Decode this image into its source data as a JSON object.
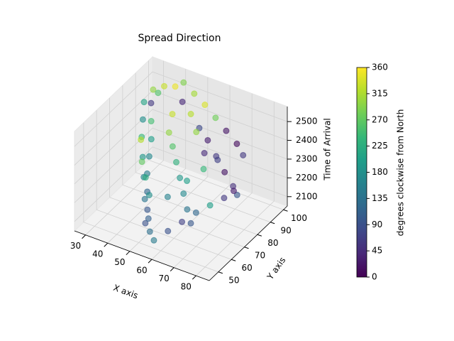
{
  "chart_data": {
    "type": "scatter3d",
    "title": "Spread Direction",
    "xlabel": "X axis",
    "ylabel": "Y axis",
    "zlabel": "Time of Arrival",
    "colorbar_label": "degrees clockwise from North",
    "xlim": [
      25,
      86
    ],
    "xticks": [
      30,
      40,
      50,
      60,
      70,
      80
    ],
    "ylim": [
      43,
      103
    ],
    "yticks": [
      50,
      60,
      70,
      80,
      90,
      100
    ],
    "zlim": [
      2050,
      2580
    ],
    "zticks": [
      2100,
      2200,
      2300,
      2400,
      2500
    ],
    "clim": [
      0,
      360
    ],
    "cticks": [
      0,
      45,
      90,
      135,
      180,
      225,
      270,
      315,
      360
    ],
    "colormap": [
      "#440154",
      "#482878",
      "#3e4989",
      "#31688e",
      "#26828e",
      "#1f9e89",
      "#35b779",
      "#6ece58",
      "#b5de2b",
      "#fde725"
    ],
    "grid": true,
    "x": [
      30,
      32,
      35,
      38,
      40,
      42,
      45,
      48,
      50,
      35,
      40,
      45,
      50,
      55,
      60,
      65,
      70,
      75,
      78,
      30,
      33,
      36,
      40,
      44,
      48,
      52,
      55,
      58,
      62,
      66,
      70,
      74,
      78,
      80,
      42,
      48,
      54,
      60,
      66,
      72,
      76,
      46,
      50,
      54,
      58,
      62,
      66,
      70,
      38,
      42,
      46,
      50,
      56,
      60,
      64,
      68,
      34,
      56,
      62,
      44
    ],
    "y": [
      95,
      90,
      85,
      80,
      75,
      70,
      65,
      60,
      55,
      95,
      95,
      92,
      90,
      88,
      86,
      84,
      82,
      80,
      78,
      88,
      82,
      76,
      70,
      64,
      58,
      54,
      50,
      48,
      52,
      56,
      60,
      64,
      68,
      72,
      98,
      96,
      94,
      92,
      90,
      88,
      86,
      80,
      76,
      72,
      68,
      64,
      60,
      56,
      72,
      66,
      62,
      58,
      62,
      70,
      76,
      80,
      92,
      84,
      80,
      86
    ],
    "z": [
      2480,
      2450,
      2400,
      2350,
      2300,
      2250,
      2200,
      2150,
      2120,
      2520,
      2540,
      2500,
      2470,
      2430,
      2400,
      2350,
      2300,
      2260,
      2240,
      2460,
      2420,
      2380,
      2330,
      2280,
      2220,
      2160,
      2130,
      2110,
      2150,
      2190,
      2230,
      2260,
      2290,
      2310,
      2550,
      2530,
      2510,
      2480,
      2450,
      2420,
      2390,
      2420,
      2390,
      2350,
      2310,
      2270,
      2230,
      2200,
      2400,
      2340,
      2300,
      2250,
      2240,
      2290,
      2330,
      2370,
      2500,
      2440,
      2380,
      2470
    ],
    "c": [
      300,
      60,
      250,
      200,
      170,
      150,
      120,
      100,
      90,
      330,
      350,
      40,
      320,
      80,
      30,
      60,
      20,
      50,
      100,
      210,
      180,
      240,
      190,
      160,
      140,
      110,
      130,
      150,
      90,
      70,
      120,
      200,
      60,
      30,
      290,
      310,
      340,
      280,
      20,
      10,
      60,
      300,
      260,
      230,
      190,
      170,
      140,
      100,
      320,
      270,
      220,
      180,
      160,
      200,
      240,
      70,
      260,
      300,
      45,
      330
    ]
  }
}
